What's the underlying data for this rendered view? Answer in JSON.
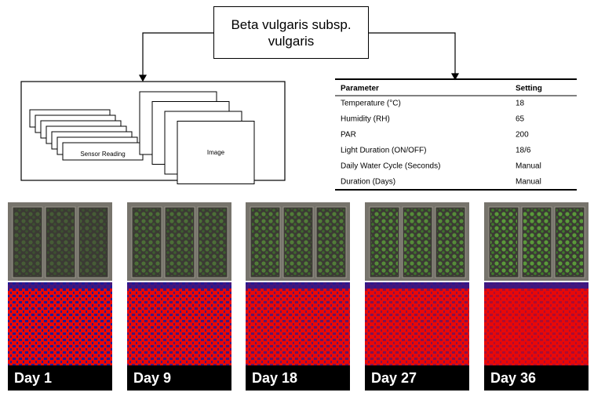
{
  "title": "Beta vulgaris subsp. vulgaris",
  "diagram": {
    "sensor_label": "Sensor Reading",
    "image_label": "Image"
  },
  "table": {
    "header": [
      "Parameter",
      "Setting"
    ],
    "rows": [
      [
        "Temperature (°C)",
        18
      ],
      [
        "Humidity (RH)",
        65
      ],
      [
        "PAR",
        200
      ],
      [
        "Light Duration (ON/OFF)",
        "18/6"
      ],
      [
        "Daily Water Cycle (Seconds)",
        "Manual"
      ],
      [
        "Duration (Days)",
        "Manual"
      ]
    ]
  },
  "panels": [
    {
      "label": "Day 1"
    },
    {
      "label": "Day 9"
    },
    {
      "label": "Day 18"
    },
    {
      "label": "Day 27"
    },
    {
      "label": "Day 36"
    }
  ]
}
